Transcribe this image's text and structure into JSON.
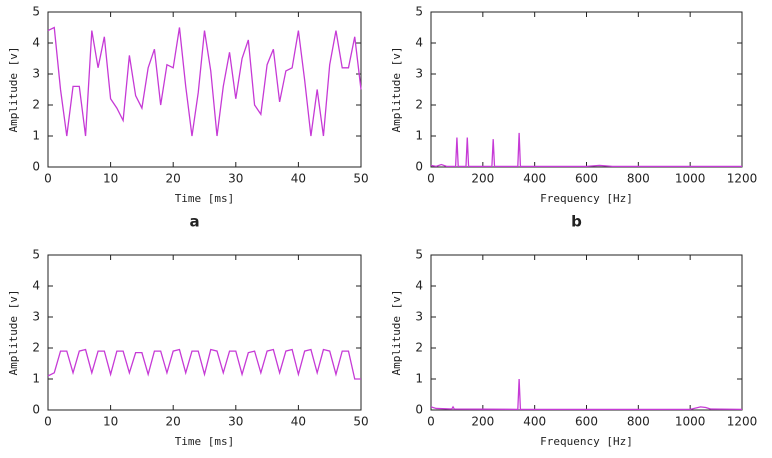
{
  "chart_data": [
    {
      "type": "line",
      "label": "a",
      "x_label": "Time [ms]",
      "y_label": "Amplitude [v]",
      "color": "#c63ad6",
      "x": [
        0,
        1,
        2,
        3,
        4,
        5,
        6,
        7,
        8,
        9,
        10,
        11,
        12,
        13,
        14,
        15,
        16,
        17,
        18,
        19,
        20,
        21,
        22,
        23,
        24,
        25,
        26,
        27,
        28,
        29,
        30,
        31,
        32,
        33,
        34,
        35,
        36,
        37,
        38,
        39,
        40,
        41,
        42,
        43,
        44,
        45,
        46,
        47,
        48,
        49,
        50
      ],
      "values": [
        4.4,
        4.5,
        2.5,
        1.0,
        2.6,
        2.6,
        1.0,
        4.4,
        3.2,
        4.2,
        2.2,
        1.9,
        1.5,
        3.6,
        2.3,
        1.9,
        3.2,
        3.8,
        2.0,
        3.3,
        3.2,
        4.5,
        2.6,
        1.0,
        2.4,
        4.4,
        3.1,
        1.0,
        2.6,
        3.7,
        2.2,
        3.5,
        4.1,
        2.0,
        1.7,
        3.3,
        3.8,
        2.1,
        3.1,
        3.2,
        4.4,
        2.8,
        1.0,
        2.5,
        1.0,
        3.3,
        4.4,
        3.2,
        3.2,
        4.2,
        2.5
      ],
      "xlim": [
        0,
        50
      ],
      "xticks": [
        0,
        10,
        20,
        30,
        40,
        50
      ],
      "ylim": [
        0,
        5
      ],
      "yticks": [
        0,
        1,
        2,
        3,
        4,
        5
      ]
    },
    {
      "type": "line",
      "label": "b",
      "x_label": "Frequency [Hz]",
      "y_label": "Amplitude [v]",
      "color": "#c63ad6",
      "x": [
        0,
        20,
        40,
        60,
        95,
        100,
        105,
        135,
        140,
        145,
        235,
        240,
        245,
        335,
        340,
        345,
        600,
        650,
        700,
        1200
      ],
      "values": [
        0.05,
        0.02,
        0.08,
        0.02,
        0.02,
        0.95,
        0.02,
        0.02,
        0.95,
        0.02,
        0.02,
        0.9,
        0.02,
        0.02,
        1.1,
        0.02,
        0.02,
        0.05,
        0.02,
        0.02
      ],
      "xlim": [
        0,
        1200
      ],
      "xticks": [
        0,
        200,
        400,
        600,
        800,
        1000,
        1200
      ],
      "ylim": [
        0,
        5
      ],
      "yticks": [
        0,
        1,
        2,
        3,
        4,
        5
      ]
    },
    {
      "type": "line",
      "x_label": "Time [ms]",
      "y_label": "Amplitude [v]",
      "color": "#c63ad6",
      "x": [
        0,
        1,
        2,
        3,
        4,
        5,
        6,
        7,
        8,
        9,
        10,
        11,
        12,
        13,
        14,
        15,
        16,
        17,
        18,
        19,
        20,
        21,
        22,
        23,
        24,
        25,
        26,
        27,
        28,
        29,
        30,
        31,
        32,
        33,
        34,
        35,
        36,
        37,
        38,
        39,
        40,
        41,
        42,
        43,
        44,
        45,
        46,
        47,
        48,
        49,
        50
      ],
      "values": [
        1.1,
        1.2,
        1.9,
        1.9,
        1.2,
        1.9,
        1.95,
        1.2,
        1.9,
        1.9,
        1.15,
        1.9,
        1.9,
        1.2,
        1.85,
        1.85,
        1.15,
        1.9,
        1.9,
        1.2,
        1.9,
        1.95,
        1.2,
        1.9,
        1.9,
        1.15,
        1.95,
        1.9,
        1.2,
        1.9,
        1.9,
        1.15,
        1.85,
        1.9,
        1.2,
        1.9,
        1.95,
        1.2,
        1.9,
        1.95,
        1.15,
        1.9,
        1.95,
        1.2,
        1.95,
        1.9,
        1.15,
        1.9,
        1.9,
        1.0,
        1.0
      ],
      "xlim": [
        0,
        50
      ],
      "xticks": [
        0,
        10,
        20,
        30,
        40,
        50
      ],
      "ylim": [
        0,
        5
      ],
      "yticks": [
        0,
        1,
        2,
        3,
        4,
        5
      ]
    },
    {
      "type": "line",
      "x_label": "Frequency [Hz]",
      "y_label": "Amplitude [v]",
      "color": "#c63ad6",
      "x": [
        0,
        20,
        80,
        85,
        90,
        335,
        340,
        345,
        1000,
        1040,
        1060,
        1080,
        1200
      ],
      "values": [
        0.1,
        0.05,
        0.03,
        0.1,
        0.03,
        0.02,
        1.0,
        0.02,
        0.02,
        0.1,
        0.08,
        0.03,
        0.02
      ],
      "xlim": [
        0,
        1200
      ],
      "xticks": [
        0,
        200,
        400,
        600,
        800,
        1000,
        1200
      ],
      "ylim": [
        0,
        5
      ],
      "yticks": [
        0,
        1,
        2,
        3,
        4,
        5
      ]
    }
  ]
}
